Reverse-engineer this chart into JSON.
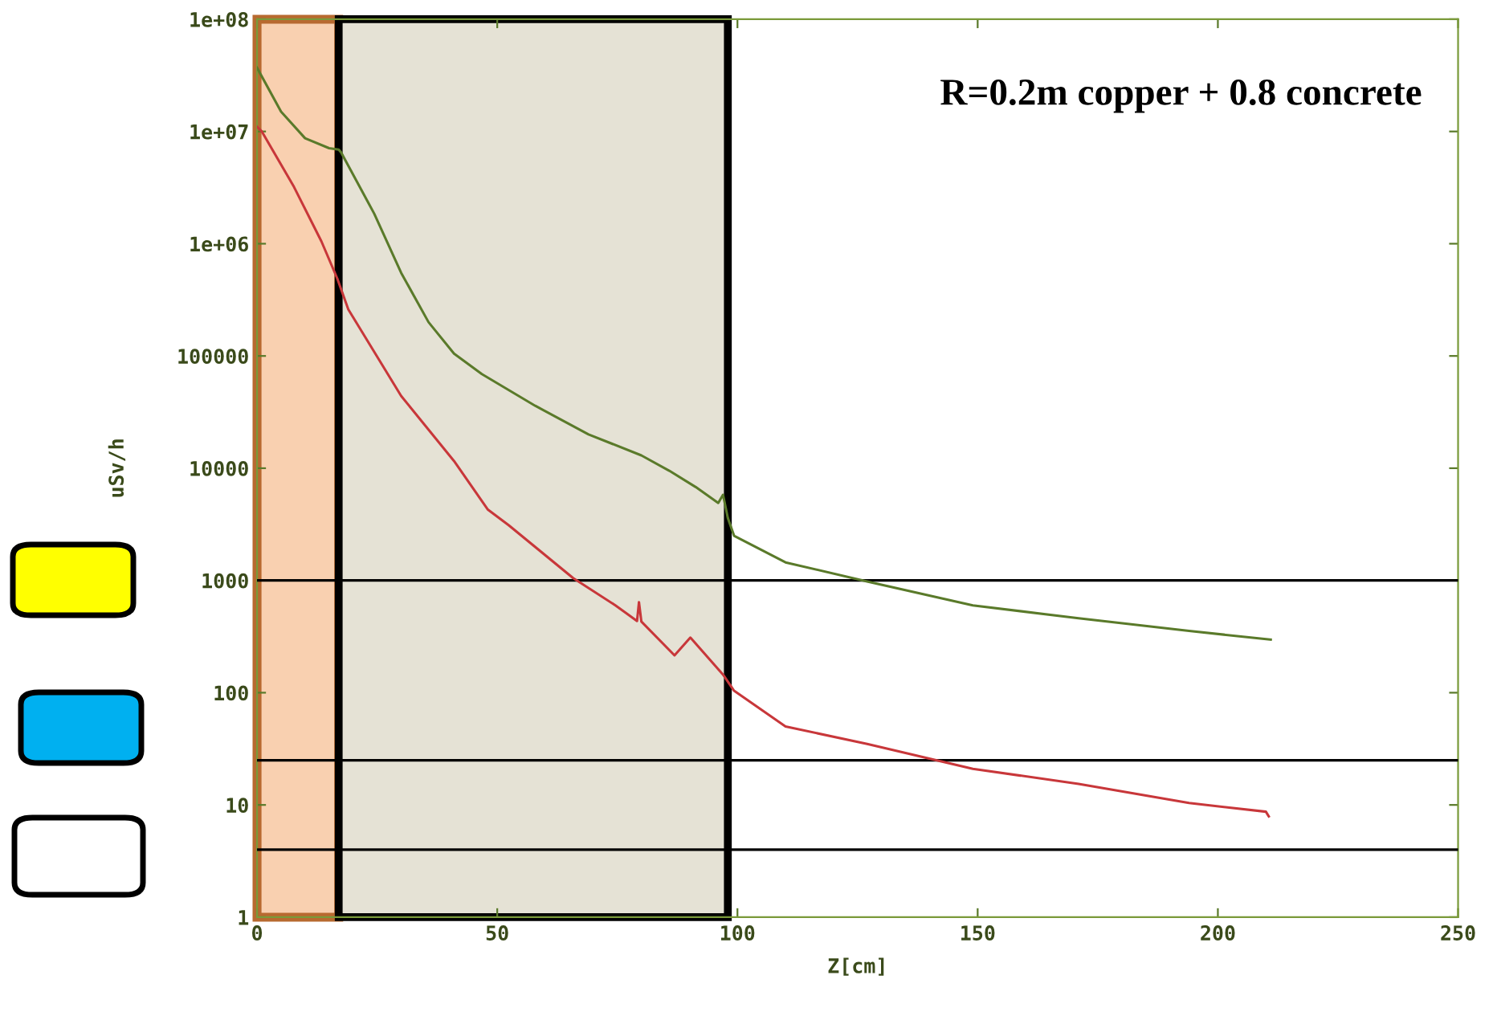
{
  "chart_data": {
    "type": "line",
    "xlabel": "Z[cm]",
    "ylabel": "uSv/h",
    "annotations": [
      "R=0.2m copper + 0.8 concrete"
    ],
    "log": "y",
    "marker": "none",
    "line_style": "solid",
    "xlim": [
      0,
      250
    ],
    "xticks": [
      0,
      50,
      100,
      150,
      200,
      250
    ],
    "ylim": [
      1,
      100000000
    ],
    "yticks": [
      1,
      10,
      100,
      1000,
      10000,
      100000,
      {
        "value": 1000000,
        "label": "1e+06"
      },
      {
        "value": 10000000,
        "label": "1e+07"
      },
      {
        "value": 100000000,
        "label": "1e+08"
      }
    ],
    "series": [
      {
        "color": "#5a7a2a",
        "x": [
          0,
          5,
          10,
          15,
          17,
          17.5,
          24.4,
          30,
          35.7,
          41,
          46.8,
          57.9,
          69,
          80,
          85.8,
          91.3,
          96,
          97,
          98,
          99.3,
          110,
          127,
          149,
          171,
          194,
          211
        ],
        "values": [
          37000000,
          15000000,
          8700000,
          7100000,
          6900000,
          6500000,
          1850000,
          550000,
          200000,
          105000,
          69000,
          36000,
          20000,
          13000,
          9500,
          6800,
          4900,
          5800,
          3600,
          2500,
          1450,
          980,
          600,
          460,
          355,
          297
        ]
      },
      {
        "color": "#c8373a",
        "x": [
          0,
          1,
          7.7,
          13.4,
          16.7,
          19,
          30,
          41,
          48,
          52.4,
          65.8,
          74.6,
          79.1,
          79.5,
          80,
          86.9,
          90.2,
          97,
          99.3,
          110,
          127,
          149,
          171,
          194,
          210,
          210.6
        ],
        "values": [
          11000000,
          10000000,
          3200000,
          1050000,
          490000,
          260000,
          44000,
          11600,
          4300,
          3100,
          1050,
          600,
          435,
          640,
          430,
          215,
          310,
          145,
          104,
          50,
          35,
          21,
          15.4,
          10.4,
          8.7,
          7.9
        ]
      }
    ],
    "ref_lines": [
      {
        "axis": "y",
        "value": 1000,
        "color": "#000000"
      },
      {
        "axis": "y",
        "value": 25,
        "color": "#000000"
      },
      {
        "axis": "y",
        "value": 4,
        "color": "#000000"
      }
    ],
    "bands": [
      {
        "axis": "x",
        "from": 0,
        "to": 17,
        "color": "#f9d0b0"
      },
      {
        "axis": "x",
        "from": 17,
        "to": 98,
        "color": "#e5e2d5"
      }
    ]
  }
}
